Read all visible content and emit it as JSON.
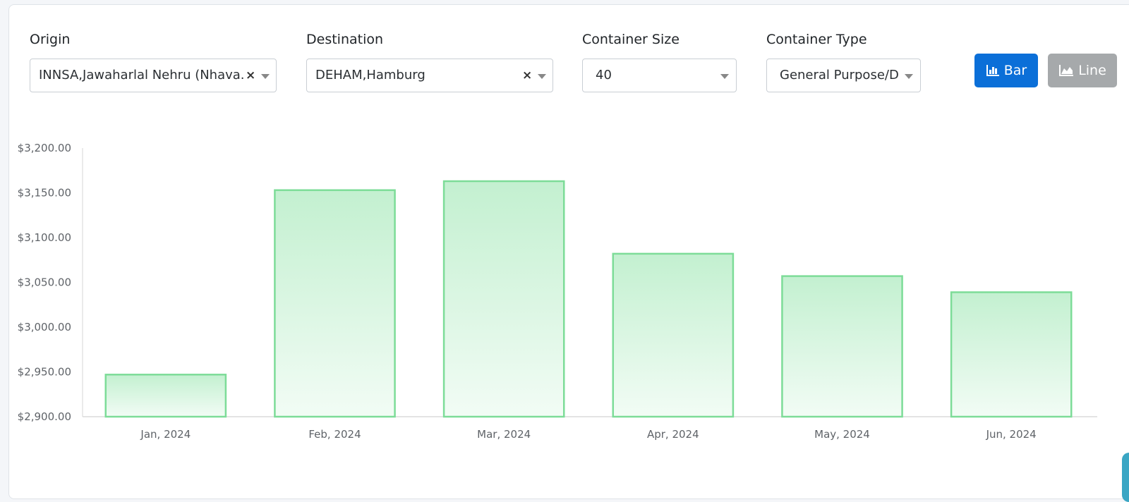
{
  "filters": {
    "origin": {
      "label": "Origin",
      "value": "INNSA,Jawaharlal Nehru (Nhava...",
      "clear": "×"
    },
    "destination": {
      "label": "Destination",
      "value": "DEHAM,Hamburg",
      "clear": "×"
    },
    "container_size": {
      "label": "Container Size",
      "value": "40"
    },
    "container_type": {
      "label": "Container Type",
      "value": "General Purpose/Dr"
    }
  },
  "toggles": {
    "bar_label": "Bar",
    "line_label": "Line",
    "active": "bar",
    "active_color": "#0b6fd8",
    "inactive_color": "#a6a9ab"
  },
  "chart_data": {
    "type": "bar",
    "categories": [
      "Jan, 2024",
      "Feb, 2024",
      "Mar, 2024",
      "Apr, 2024",
      "May, 2024",
      "Jun, 2024"
    ],
    "values": [
      2947,
      3153,
      3163,
      3082,
      3057,
      3039
    ],
    "ylim": [
      2900,
      3200
    ],
    "yticks": [
      "$2,900.00",
      "$2,950.00",
      "$3,000.00",
      "$3,050.00",
      "$3,100.00",
      "$3,150.00",
      "$3,200.00"
    ],
    "bar_fill_top": "#c3f0d0",
    "bar_fill_bottom": "#f2fcf5",
    "bar_stroke": "#7ddc98",
    "grid": false
  }
}
